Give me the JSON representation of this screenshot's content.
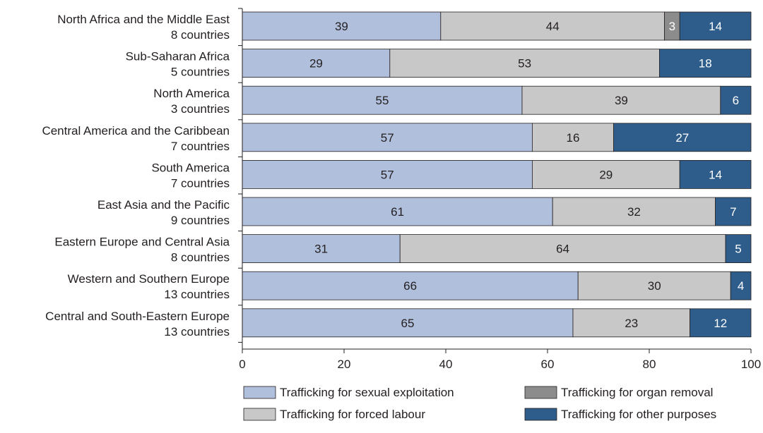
{
  "chart_data": {
    "type": "bar",
    "orientation": "horizontal",
    "stacked": true,
    "categories": [
      {
        "name": "North Africa and the Middle East",
        "sub": "8 countries"
      },
      {
        "name": "Sub-Saharan Africa",
        "sub": "5 countries"
      },
      {
        "name": "North America",
        "sub": "3 countries"
      },
      {
        "name": "Central America and the Caribbean",
        "sub": "7 countries"
      },
      {
        "name": "South America",
        "sub": "7 countries"
      },
      {
        "name": "East Asia and the Pacific",
        "sub": "9 countries"
      },
      {
        "name": "Eastern Europe and Central Asia",
        "sub": "8 countries"
      },
      {
        "name": "Western and Southern Europe",
        "sub": "13 countries"
      },
      {
        "name": "Central and South-Eastern Europe",
        "sub": "13 countries"
      }
    ],
    "series": [
      {
        "name": "Trafficking for sexual exploitation",
        "color": "#b0bfdc",
        "text_color": "#231f20",
        "values": [
          39,
          29,
          55,
          57,
          57,
          61,
          31,
          66,
          65
        ]
      },
      {
        "name": "Trafficking for forced labour",
        "color": "#c8c8c8",
        "text_color": "#231f20",
        "values": [
          44,
          53,
          39,
          16,
          29,
          32,
          64,
          30,
          23
        ]
      },
      {
        "name": "Trafficking for organ removal",
        "color": "#8c8c8c",
        "text_color": "#ffffff",
        "values": [
          3,
          0,
          0,
          0,
          0,
          0,
          0,
          0,
          0
        ]
      },
      {
        "name": "Trafficking for other purposes",
        "color": "#2e5d8c",
        "text_color": "#ffffff",
        "values": [
          14,
          18,
          6,
          27,
          14,
          7,
          5,
          4,
          12
        ]
      }
    ],
    "xlim": [
      0,
      100
    ],
    "xticks": [
      0,
      20,
      40,
      60,
      80,
      100
    ],
    "legend_position": "bottom",
    "legend_order": [
      0,
      2,
      1,
      3
    ],
    "grid": false
  }
}
